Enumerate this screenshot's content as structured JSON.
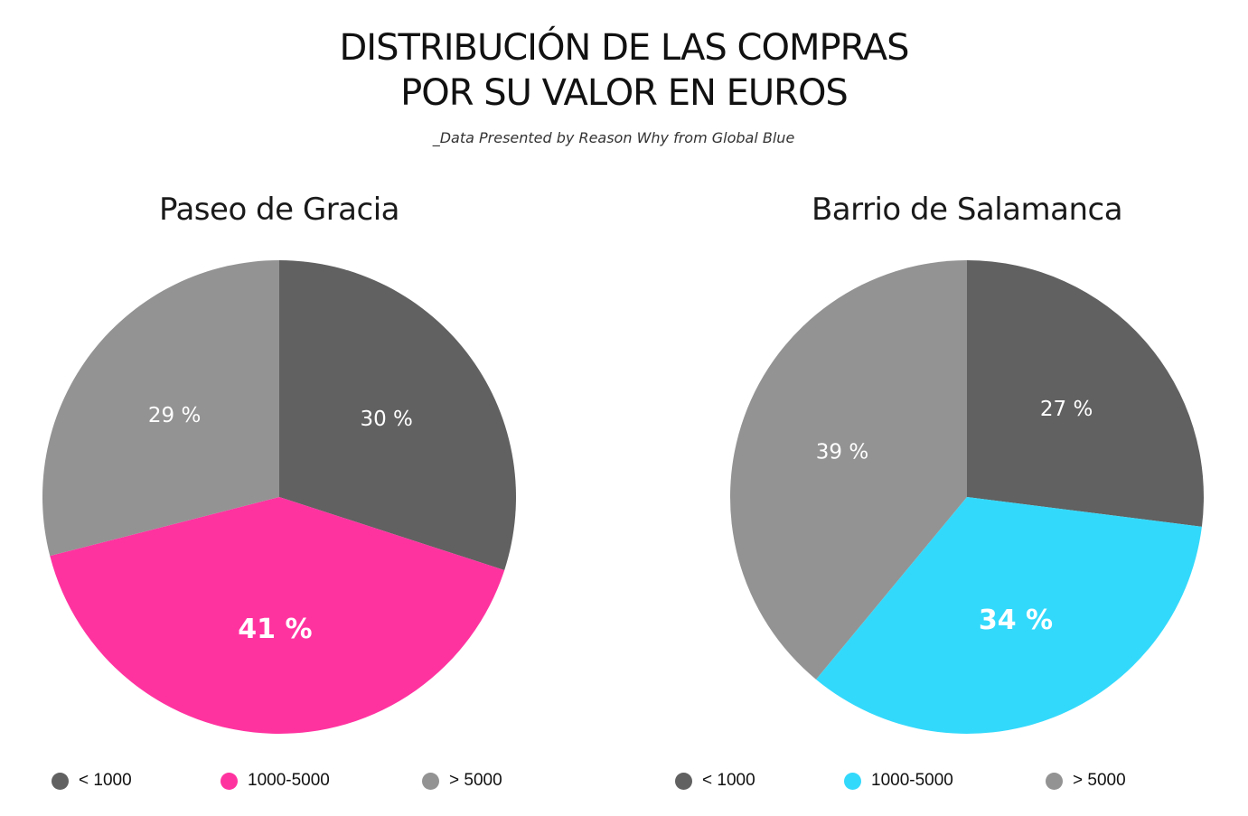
{
  "header": {
    "title_line1": "DISTRIBUCIÓN DE LAS COMPRAS",
    "title_line2": "POR SU VALOR EN EUROS",
    "subtitle": "_Data Presented by Reason Why from Global Blue"
  },
  "chart_data": [
    {
      "type": "pie",
      "title": "Paseo de Gracia",
      "categories": [
        "< 1000",
        "1000-5000",
        "> 5000"
      ],
      "values": [
        30,
        41,
        29
      ],
      "labels": [
        "30 %",
        "41 %",
        "29 %"
      ],
      "colors": [
        "#616161",
        "#ff33a0",
        "#939393"
      ],
      "start_angle_deg": 0,
      "direction": "clockwise",
      "highlight_index": 1,
      "legend_position": "bottom"
    },
    {
      "type": "pie",
      "title": "Barrio de Salamanca",
      "categories": [
        "< 1000",
        "1000-5000",
        "> 5000"
      ],
      "values": [
        27,
        34,
        39
      ],
      "labels": [
        "27 %",
        "34 %",
        "39 %"
      ],
      "colors": [
        "#616161",
        "#33d9fb",
        "#939393"
      ],
      "start_angle_deg": 0,
      "direction": "clockwise",
      "highlight_index": 1,
      "legend_position": "bottom"
    }
  ]
}
